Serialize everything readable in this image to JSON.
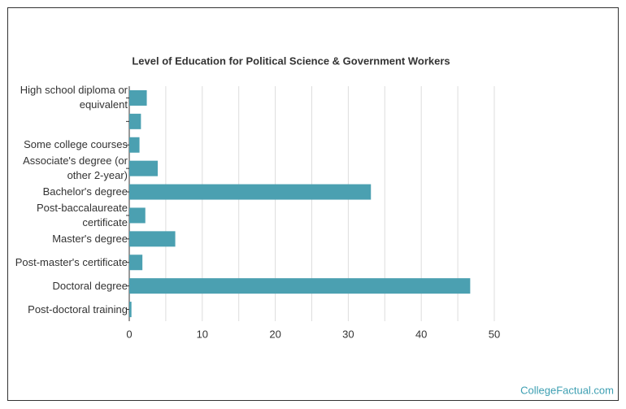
{
  "chart_data": {
    "type": "bar",
    "orientation": "horizontal",
    "title": "Level of Education for Political Science & Government Workers",
    "categories": [
      "High school diploma or equivalent",
      null,
      "Some college courses",
      "Associate's degree (or other 2-year)",
      "Bachelor's degree",
      "Post-baccalaureate certificate",
      "Master's degree",
      "Post-master's certificate",
      "Doctoral degree",
      "Post-doctoral training"
    ],
    "values": [
      2.4,
      1.6,
      1.4,
      3.9,
      33.1,
      2.2,
      6.3,
      1.8,
      46.7,
      0.3
    ],
    "color": "#4ba0b1",
    "xlim": [
      0,
      50
    ],
    "xticks": [
      0,
      10,
      20,
      30,
      40,
      50
    ],
    "xgrid": [
      0,
      5,
      10,
      15,
      20,
      25,
      30,
      35,
      40,
      45,
      50
    ],
    "grid": true,
    "source": "CollegeFactual.com"
  }
}
